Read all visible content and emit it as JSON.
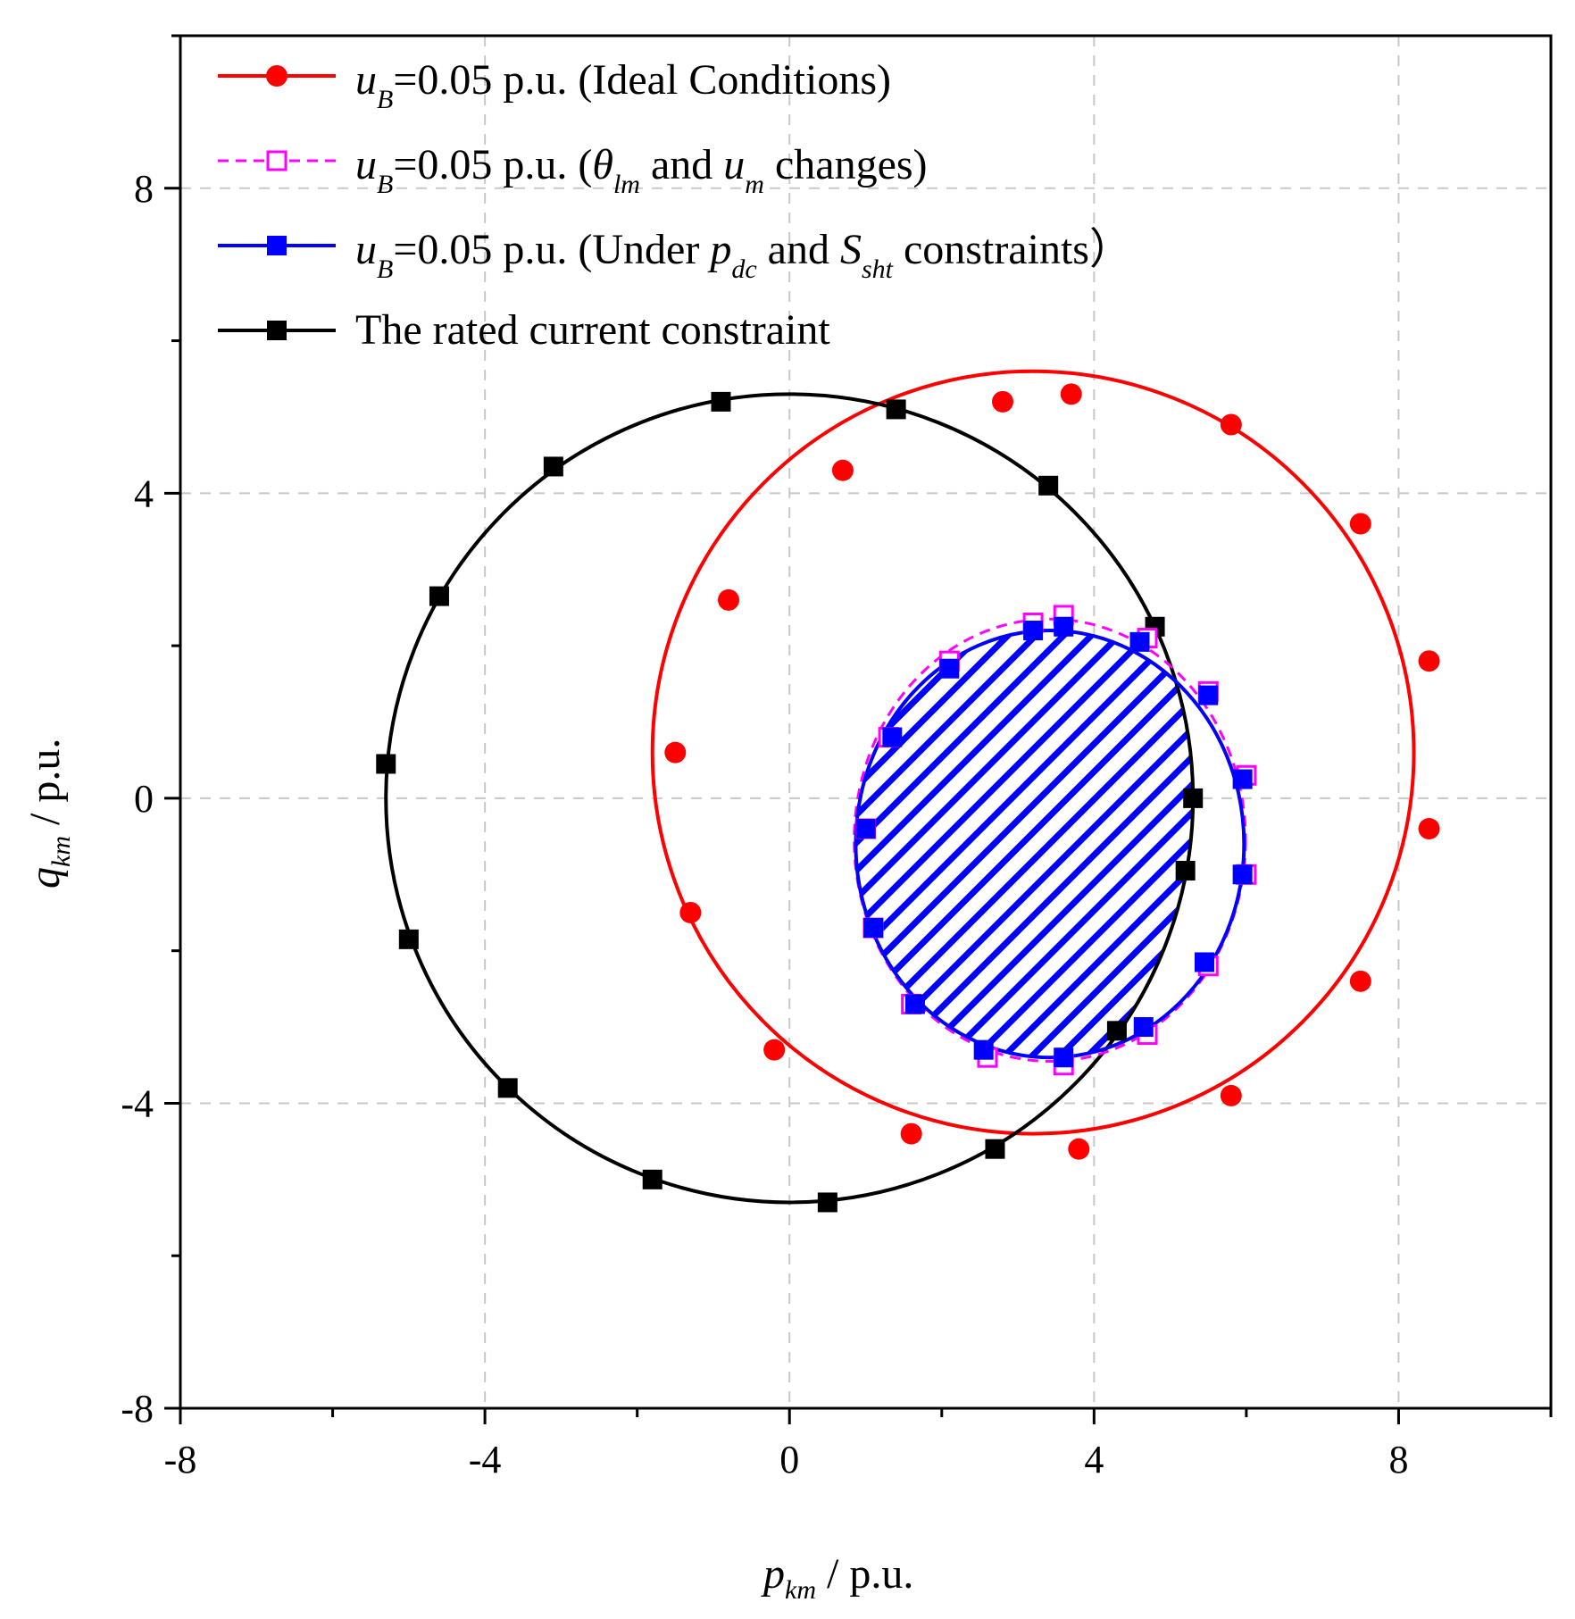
{
  "chart_data": {
    "type": "line",
    "xlabel": {
      "main": "p",
      "sub": "km",
      "unit": " / p.u."
    },
    "ylabel": {
      "main": "q",
      "sub": "km",
      "unit": " / p.u."
    },
    "xlim": [
      -8,
      10
    ],
    "ylim": [
      -8,
      10
    ],
    "xticks": [
      -8,
      -4,
      0,
      4,
      8
    ],
    "yticks": [
      -8,
      -4,
      0,
      4,
      8
    ],
    "xtick_labels": [
      "-8",
      "-4",
      "0",
      "4",
      "8"
    ],
    "ytick_labels": [
      "-8",
      "-4",
      "0",
      "4",
      "8"
    ],
    "grid": true,
    "legend_position": "top-left",
    "colors": {
      "ideal": "#ff0000",
      "changes": "#ff00ff",
      "constraints": "#0000ff",
      "rated": "#000000"
    },
    "series": [
      {
        "name": "u_B=0.05 p.u. (Ideal Conditions)",
        "legend": {
          "pre": "u",
          "sub": "B",
          "rest": "=0.05 p.u. (Ideal Conditions)"
        },
        "marker": "circle",
        "line": "solid",
        "color_key": "ideal",
        "center": [
          3.2,
          0.6
        ],
        "radius_x": 5.0,
        "radius_y": 5.0,
        "points": [
          [
            2.8,
            5.2
          ],
          [
            3.7,
            5.3
          ],
          [
            5.8,
            4.9
          ],
          [
            7.5,
            3.6
          ],
          [
            8.4,
            1.8
          ],
          [
            8.4,
            -0.4
          ],
          [
            7.5,
            -2.4
          ],
          [
            5.8,
            -3.9
          ],
          [
            3.8,
            -4.6
          ],
          [
            1.6,
            -4.4
          ],
          [
            -0.2,
            -3.3
          ],
          [
            -1.3,
            -1.5
          ],
          [
            -1.5,
            0.6
          ],
          [
            -0.8,
            2.6
          ],
          [
            0.7,
            4.3
          ]
        ]
      },
      {
        "name": "u_B=0.05 p.u. (θ_lm and u_m changes)",
        "legend": {
          "pre": "u",
          "sub": "B",
          "mid1": "=0.05 p.u. (",
          "theta": "θ",
          "theta_sub": "lm",
          "mid2": " and ",
          "u2": "u",
          "u2_sub": "m",
          "rest": " changes)"
        },
        "marker": "open-square",
        "line": "dashed",
        "color_key": "changes",
        "center": [
          3.42,
          -0.55
        ],
        "radius_x": 2.57,
        "radius_y": 2.9,
        "points": [
          [
            3.2,
            2.3
          ],
          [
            3.6,
            2.4
          ],
          [
            4.7,
            2.1
          ],
          [
            5.5,
            1.4
          ],
          [
            6.0,
            0.3
          ],
          [
            6.0,
            -1.0
          ],
          [
            5.5,
            -2.2
          ],
          [
            4.7,
            -3.1
          ],
          [
            3.6,
            -3.5
          ],
          [
            2.6,
            -3.4
          ],
          [
            1.6,
            -2.7
          ],
          [
            1.1,
            -1.7
          ],
          [
            1.0,
            -0.4
          ],
          [
            1.3,
            0.8
          ],
          [
            2.1,
            1.8
          ]
        ]
      },
      {
        "name": "u_B=0.05 p.u. (Under p_dc and S_sht constraints)",
        "legend": {
          "pre": "u",
          "sub": "B",
          "mid1": "=0.05 p.u. (Under ",
          "p": "p",
          "p_sub": "dc",
          "mid2": " and ",
          "s": "S",
          "s_sub": "sht",
          "rest": " constraints）"
        },
        "marker": "square",
        "line": "solid",
        "color_key": "constraints",
        "center": [
          3.42,
          -0.6
        ],
        "radius_x": 2.55,
        "radius_y": 2.8,
        "points": [
          [
            3.2,
            2.2
          ],
          [
            3.6,
            2.25
          ],
          [
            4.6,
            2.05
          ],
          [
            5.5,
            1.35
          ],
          [
            5.95,
            0.25
          ],
          [
            5.95,
            -1.0
          ],
          [
            5.45,
            -2.15
          ],
          [
            4.65,
            -3.0
          ],
          [
            3.6,
            -3.4
          ],
          [
            2.55,
            -3.3
          ],
          [
            1.65,
            -2.7
          ],
          [
            1.1,
            -1.7
          ],
          [
            1.0,
            -0.4
          ],
          [
            1.35,
            0.8
          ],
          [
            2.1,
            1.7
          ]
        ]
      },
      {
        "name": "The rated current constraint",
        "legend": {
          "rest": "The rated current constraint"
        },
        "marker": "square",
        "line": "solid",
        "color_key": "rated",
        "center": [
          0.0,
          0.0
        ],
        "radius_x": 5.3,
        "radius_y": 5.3,
        "points": [
          [
            -0.9,
            5.2
          ],
          [
            1.4,
            5.1
          ],
          [
            3.4,
            4.1
          ],
          [
            4.8,
            2.25
          ],
          [
            5.3,
            0.0
          ],
          [
            5.2,
            -0.95
          ],
          [
            4.3,
            -3.05
          ],
          [
            2.7,
            -4.6
          ],
          [
            0.5,
            -5.3
          ],
          [
            -1.8,
            -5.0
          ],
          [
            -3.7,
            -3.8
          ],
          [
            -5.0,
            -1.85
          ],
          [
            -5.3,
            0.45
          ],
          [
            -4.6,
            2.65
          ],
          [
            -3.1,
            4.35
          ]
        ]
      }
    ],
    "feasible_region": {
      "description_source": "intersection of blue ellipse and rated current circle",
      "fill": "hatched",
      "color_key": "constraints"
    }
  }
}
